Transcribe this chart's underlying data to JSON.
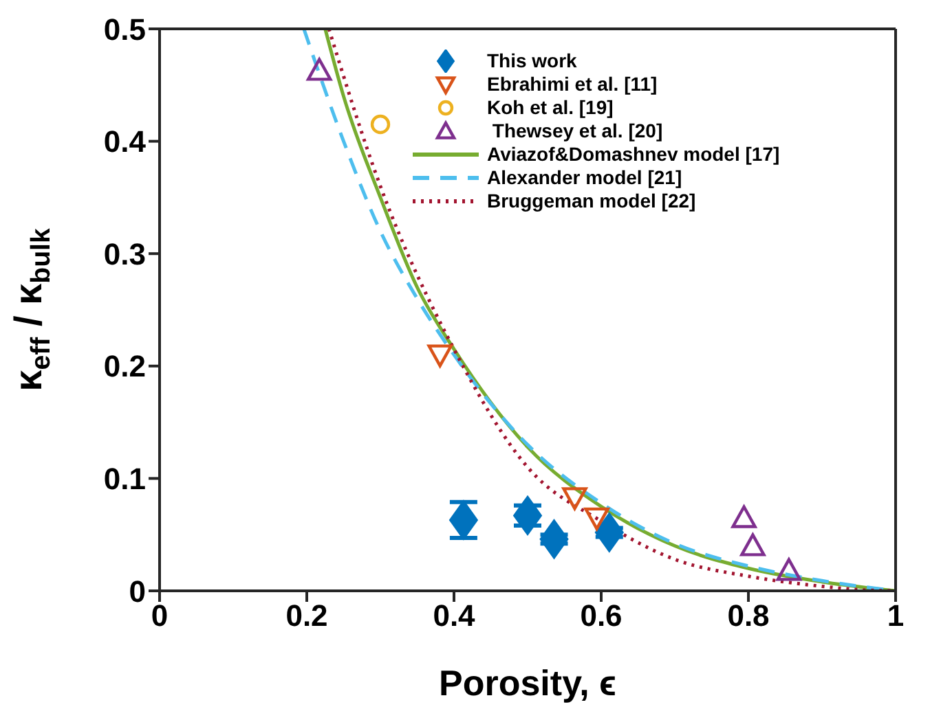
{
  "chart_data": {
    "type": "scatter",
    "xlabel": "Porosity, ϵ",
    "ylabel": "κ$_{eff}$ / κ$_{bulk}$",
    "xlim": [
      0,
      1
    ],
    "ylim": [
      0,
      0.5
    ],
    "xticks": [
      0,
      0.2,
      0.4,
      0.6,
      0.8,
      1
    ],
    "yticks": [
      0,
      0.1,
      0.2,
      0.3,
      0.4,
      0.5
    ],
    "legend": "top right",
    "series": [
      {
        "name": "This work",
        "marker": "diamond",
        "color": "#0072bd",
        "x": [
          0.413,
          0.5,
          0.536,
          0.611
        ],
        "values": [
          0.063,
          0.067,
          0.046,
          0.052
        ],
        "errors": [
          0.016,
          0.009,
          0.004,
          0.004
        ]
      },
      {
        "name": "Ebrahimi et al. [11]",
        "marker": "triangle-down",
        "color": "#d95319",
        "x": [
          0.381,
          0.564,
          0.594
        ],
        "values": [
          0.21,
          0.083,
          0.065
        ]
      },
      {
        "name": "Koh et al. [19]",
        "marker": "circle",
        "color": "#edb120",
        "x": [
          0.3
        ],
        "values": [
          0.415
        ]
      },
      {
        "name": " Thewsey et al. [20]",
        "marker": "triangle",
        "color": "#7e2f8e",
        "x": [
          0.217,
          0.794,
          0.806,
          0.855
        ],
        "values": [
          0.463,
          0.065,
          0.04,
          0.018
        ]
      },
      {
        "name": "Aviazof&Domashnev model [17]",
        "type": "line",
        "line_style": "solid",
        "color": "#77ac30",
        "x": [
          0.225,
          0.25,
          0.3,
          0.35,
          0.4,
          0.5,
          0.6,
          0.7,
          0.8,
          0.9,
          1
        ],
        "values": [
          0.5,
          0.44,
          0.35,
          0.27,
          0.215,
          0.128,
          0.075,
          0.04,
          0.02,
          0.008,
          0
        ]
      },
      {
        "name": "Alexander model [21]",
        "type": "line",
        "line_style": "dashed",
        "color": "#4dbeee",
        "x": [
          0.196,
          0.25,
          0.3,
          0.35,
          0.4,
          0.5,
          0.6,
          0.7,
          0.8,
          0.9,
          1
        ],
        "values": [
          0.5,
          0.4,
          0.32,
          0.26,
          0.21,
          0.13,
          0.078,
          0.042,
          0.022,
          0.009,
          0
        ]
      },
      {
        "name": "Bruggeman model [22]",
        "type": "line",
        "line_style": "dotted",
        "color": "#a2142f",
        "x": [
          0.23,
          0.3,
          0.4,
          0.5,
          0.6,
          0.7,
          0.8,
          0.9,
          0.95,
          1
        ],
        "values": [
          0.5,
          0.36,
          0.215,
          0.11,
          0.062,
          0.028,
          0.013,
          0.004,
          0.001,
          0
        ]
      }
    ]
  }
}
